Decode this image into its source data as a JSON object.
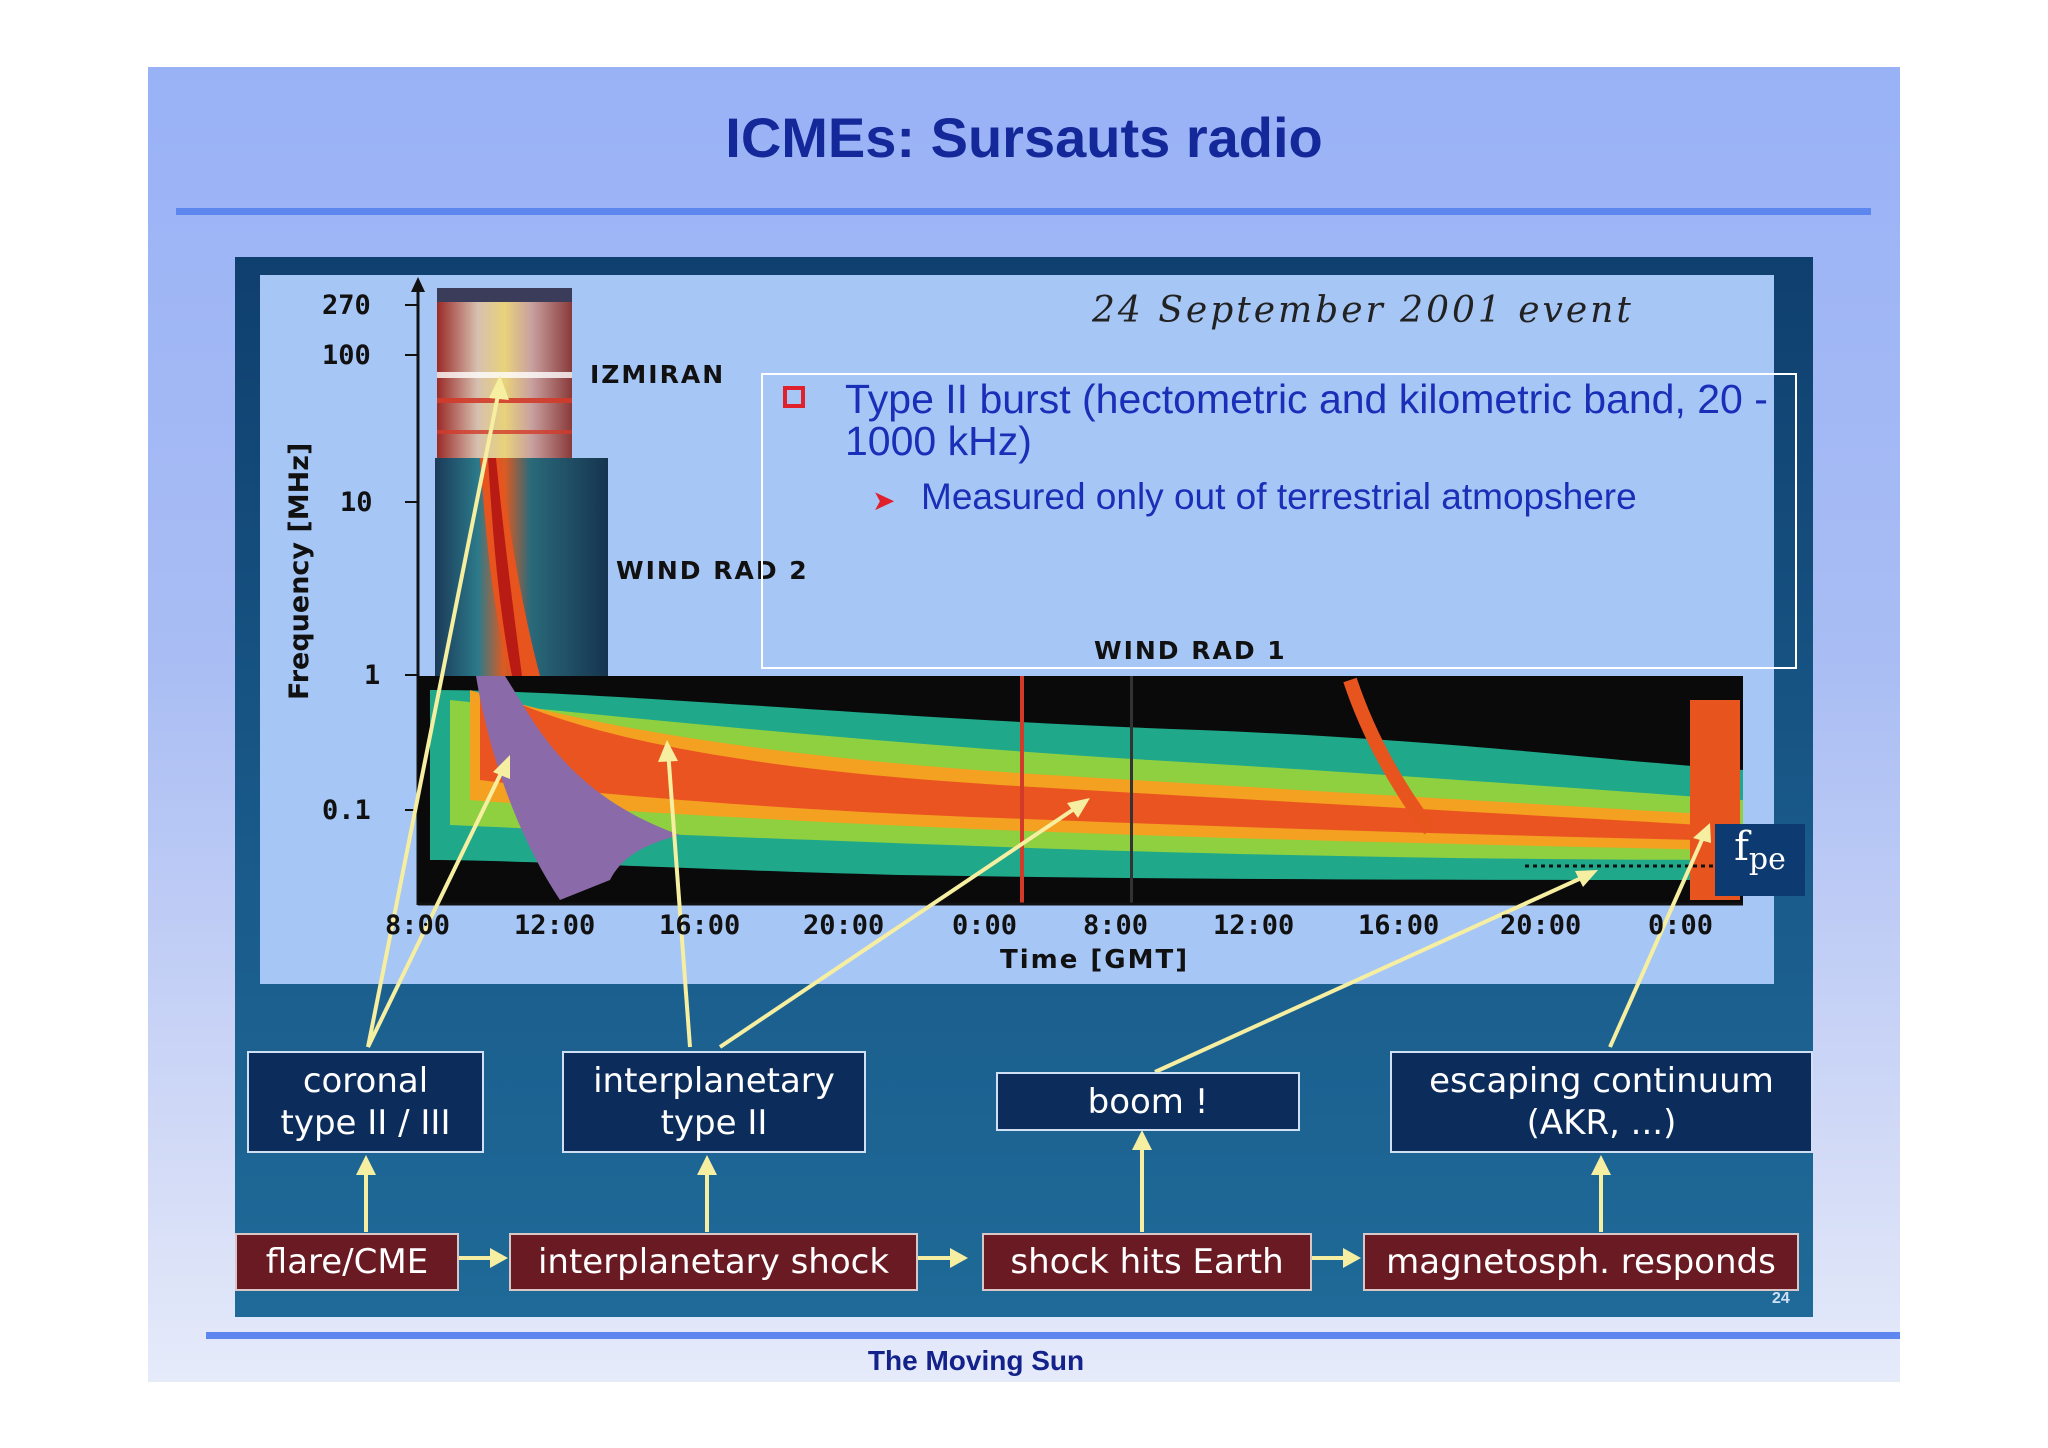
{
  "slide": {
    "title": "ICMEs: Sursauts radio",
    "footer": "The Moving Sun",
    "page_number": "24"
  },
  "plot": {
    "event_label": "24 September 2001 event",
    "y_axis_label": "Frequency [MHz]",
    "y_ticks": [
      "270",
      "100",
      "10",
      "1",
      "0.1"
    ],
    "x_axis_label": "Time [GMT]",
    "x_ticks": [
      "8:00",
      "12:00",
      "16:00",
      "20:00",
      "0:00",
      "8:00",
      "12:00",
      "16:00",
      "20:00",
      "0:00"
    ],
    "instrument_labels": [
      "IZMIRAN",
      "WIND RAD 2",
      "WIND RAD 1"
    ],
    "fpe_label": "f",
    "fpe_sub": "pe"
  },
  "textbox": {
    "bullet1": "Type II burst (hectometric and kilometric band, 20 - 1000 kHz)",
    "bullet2": "Measured only out of terrestrial atmopshere"
  },
  "boxes": {
    "coronal_line1": "coronal",
    "coronal_line2": "type II / III",
    "interplanetary_line1": "interplanetary",
    "interplanetary_line2": "type II",
    "boom": "boom !",
    "escaping_line1": "escaping continuum",
    "escaping_line2": "(AKR, ...)",
    "flare": "flare/CME",
    "shock": "interplanetary shock",
    "hits_earth": "shock hits Earth",
    "magnetosph": "magnetosph. responds"
  },
  "colors": {
    "title": "#15289a",
    "bullet_text": "#1a2fb8",
    "bullet_marker": "#e0202a",
    "arrow": "#f6eea0",
    "box_blue": "#0c2d5c",
    "box_red": "#6a1a22"
  }
}
